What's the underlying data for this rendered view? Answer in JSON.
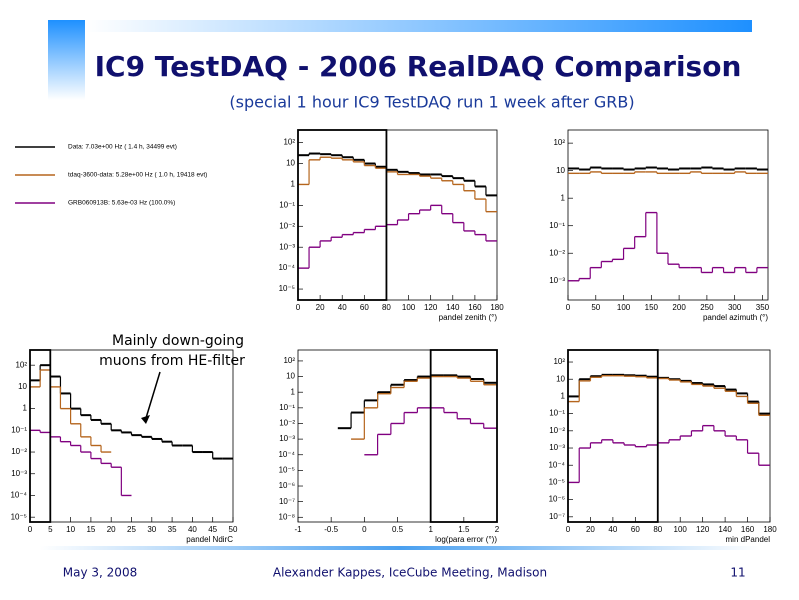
{
  "header": {
    "title": "IC9 TestDAQ - 2006 RealDAQ Comparison",
    "subtitle": "(special 1 hour IC9 TestDAQ run 1 week after GRB)"
  },
  "legend": [
    {
      "text": "Data: 7.03e+00 Hz ( 1.4 h, 34499 evt)",
      "color": "#000000"
    },
    {
      "text": "tdaq-3600-data: 5.28e+00 Hz ( 1.0 h, 19418 evt)",
      "color": "#b5651d"
    },
    {
      "text": "GRB060913B: 5.63e-03 Hz (100.0%)",
      "color": "#800080"
    }
  ],
  "annotation": [
    "Mainly down-going",
    "muons from HE-filter"
  ],
  "footer": {
    "date": "May 3, 2008",
    "author": "Alexander Kappes, IceCube Meeting, Madison",
    "page": "11"
  },
  "chart_data": [
    {
      "type": "histogram",
      "xlabel": "pandel zenith (°)",
      "log_y": true,
      "cut": [
        0,
        80
      ],
      "bins": [
        0,
        10,
        20,
        30,
        40,
        50,
        60,
        70,
        80,
        90,
        100,
        110,
        120,
        130,
        140,
        150,
        160,
        170,
        180
      ],
      "xlim": [
        0,
        180
      ],
      "xticks": [
        0,
        20,
        40,
        60,
        80,
        100,
        120,
        140,
        160,
        180
      ],
      "ylim": [
        3e-06,
        400
      ],
      "yticks": [
        {
          "value": 1e-05,
          "label": "10⁻⁵"
        },
        {
          "value": 0.0001,
          "label": "10⁻⁴"
        },
        {
          "value": 0.001,
          "label": "10⁻³"
        },
        {
          "value": 0.01,
          "label": "10⁻²"
        },
        {
          "value": 0.1,
          "label": "10⁻¹"
        },
        1,
        10,
        {
          "value": 100,
          "label": "10²"
        }
      ],
      "series": [
        {
          "color": "#000000",
          "values": [
            25,
            30,
            28,
            25,
            20,
            15,
            10,
            7,
            5,
            4,
            3.5,
            3,
            3,
            2.5,
            2,
            1.5,
            0.8,
            0.3
          ]
        },
        {
          "color": "#b5651d",
          "values": [
            1,
            15,
            20,
            18,
            15,
            12,
            8,
            6,
            4,
            3,
            3,
            2.5,
            2,
            1.5,
            1,
            0.5,
            0.2,
            0.05
          ]
        },
        {
          "color": "#800080",
          "values": [
            0.0001,
            0.001,
            0.002,
            0.003,
            0.004,
            0.005,
            0.007,
            0.01,
            0.012,
            0.02,
            0.04,
            0.06,
            0.1,
            0.04,
            0.015,
            0.006,
            0.004,
            0.002
          ]
        }
      ]
    },
    {
      "type": "histogram",
      "xlabel": "pandel azimuth (°)",
      "log_y": true,
      "bins": [
        0,
        20,
        40,
        60,
        80,
        100,
        120,
        140,
        160,
        180,
        200,
        220,
        240,
        260,
        280,
        300,
        320,
        340,
        360
      ],
      "xlim": [
        0,
        360
      ],
      "xticks": [
        0,
        50,
        100,
        150,
        200,
        250,
        300,
        350
      ],
      "ylim": [
        0.0002,
        300
      ],
      "yticks": [
        {
          "value": 0.001,
          "label": "10⁻³"
        },
        {
          "value": 0.01,
          "label": "10⁻²"
        },
        {
          "value": 0.1,
          "label": "10⁻¹"
        },
        1,
        10,
        {
          "value": 100,
          "label": "10²"
        }
      ],
      "series": [
        {
          "color": "#000000",
          "values": [
            12,
            11,
            13,
            12,
            12,
            11,
            12,
            13,
            12,
            11,
            12,
            12,
            13,
            12,
            11,
            12,
            12,
            11
          ]
        },
        {
          "color": "#b5651d",
          "values": [
            8,
            8,
            9,
            8,
            8,
            8,
            9,
            9,
            8,
            8,
            8,
            9,
            8,
            8,
            8,
            9,
            8,
            8
          ]
        },
        {
          "color": "#800080",
          "values": [
            0.001,
            0.0012,
            0.003,
            0.005,
            0.006,
            0.015,
            0.04,
            0.3,
            0.01,
            0.004,
            0.003,
            0.003,
            0.002,
            0.003,
            0.002,
            0.003,
            0.002,
            0.003
          ]
        }
      ]
    },
    {
      "type": "histogram",
      "xlabel": "pandel NdirC",
      "log_y": true,
      "cut": [
        0,
        5
      ],
      "bins": [
        0,
        2.5,
        5,
        7.5,
        10,
        12.5,
        15,
        17.5,
        20,
        22.5,
        25,
        27.5,
        30,
        32.5,
        35,
        37.5,
        40,
        42.5,
        45,
        47.5,
        50
      ],
      "xlim": [
        0,
        50
      ],
      "xticks": [
        0,
        5,
        10,
        15,
        20,
        25,
        30,
        35,
        40,
        45,
        50
      ],
      "ylim": [
        6e-06,
        500
      ],
      "yticks": [
        {
          "value": 1e-05,
          "label": "10⁻⁵"
        },
        {
          "value": 0.0001,
          "label": "10⁻⁴"
        },
        {
          "value": 0.001,
          "label": "10⁻³"
        },
        {
          "value": 0.01,
          "label": "10⁻²"
        },
        {
          "value": 0.1,
          "label": "10⁻¹"
        },
        1,
        10,
        {
          "value": 100,
          "label": "10²"
        }
      ],
      "series": [
        {
          "color": "#000000",
          "values": [
            20,
            100,
            30,
            5,
            1,
            0.5,
            0.3,
            0.2,
            0.1,
            0.08,
            0.06,
            0.05,
            0.04,
            0.03,
            0.02,
            0.02,
            0.01,
            0.01,
            0.005,
            0.005
          ]
        },
        {
          "color": "#b5651d",
          "values": [
            10,
            60,
            10,
            1,
            0.2,
            0.05,
            0.02,
            0.01,
            null,
            null,
            null,
            null,
            null,
            null,
            null,
            null,
            null,
            null,
            null,
            null
          ]
        },
        {
          "color": "#800080",
          "values": [
            0.1,
            0.08,
            0.05,
            0.03,
            0.02,
            0.01,
            0.005,
            0.003,
            0.002,
            0.0001,
            null,
            null,
            null,
            null,
            null,
            null,
            null,
            null,
            null,
            null
          ]
        }
      ]
    },
    {
      "type": "histogram",
      "xlabel": "log(para error (°))",
      "log_y": true,
      "cut": [
        1,
        2
      ],
      "bins": [
        -1,
        -0.8,
        -0.6,
        -0.4,
        -0.2,
        0,
        0.2,
        0.4,
        0.6,
        0.8,
        1,
        1.2,
        1.4,
        1.6,
        1.8,
        2
      ],
      "xlim": [
        -1,
        2
      ],
      "xticks": [
        -1,
        -0.5,
        0,
        0.5,
        1,
        1.5,
        2
      ],
      "ylim": [
        5e-09,
        500
      ],
      "yticks": [
        {
          "value": 1e-08,
          "label": "10⁻⁸"
        },
        {
          "value": 1e-07,
          "label": "10⁻⁷"
        },
        {
          "value": 1e-06,
          "label": "10⁻⁶"
        },
        {
          "value": 1e-05,
          "label": "10⁻⁵"
        },
        {
          "value": 0.0001,
          "label": "10⁻⁴"
        },
        {
          "value": 0.001,
          "label": "10⁻³"
        },
        {
          "value": 0.01,
          "label": "10⁻²"
        },
        {
          "value": 0.1,
          "label": "10⁻¹"
        },
        1,
        10,
        {
          "value": 100,
          "label": "10²"
        }
      ],
      "series": [
        {
          "color": "#000000",
          "values": [
            null,
            null,
            null,
            0.005,
            0.05,
            0.3,
            1,
            3,
            6,
            10,
            12,
            12,
            10,
            7,
            4
          ]
        },
        {
          "color": "#b5651d",
          "values": [
            null,
            null,
            null,
            null,
            0.001,
            0.1,
            0.8,
            2,
            5,
            8,
            10,
            10,
            8,
            5,
            3
          ]
        },
        {
          "color": "#800080",
          "values": [
            null,
            null,
            null,
            null,
            null,
            0.0001,
            0.002,
            0.01,
            0.05,
            0.1,
            0.1,
            0.05,
            0.02,
            0.01,
            0.005
          ]
        }
      ]
    },
    {
      "type": "histogram",
      "xlabel": "min dPandel",
      "log_y": true,
      "cut": [
        0,
        80
      ],
      "bins": [
        0,
        10,
        20,
        30,
        40,
        50,
        60,
        70,
        80,
        90,
        100,
        110,
        120,
        130,
        140,
        150,
        160,
        170,
        180
      ],
      "xlim": [
        0,
        180
      ],
      "xticks": [
        0,
        20,
        40,
        60,
        80,
        100,
        120,
        140,
        160,
        180
      ],
      "ylim": [
        5e-08,
        500
      ],
      "yticks": [
        {
          "value": 1e-07,
          "label": "10⁻⁷"
        },
        {
          "value": 1e-06,
          "label": "10⁻⁶"
        },
        {
          "value": 1e-05,
          "label": "10⁻⁵"
        },
        {
          "value": 0.0001,
          "label": "10⁻⁴"
        },
        {
          "value": 0.001,
          "label": "10⁻³"
        },
        {
          "value": 0.01,
          "label": "10⁻²"
        },
        {
          "value": 0.1,
          "label": "10⁻¹"
        },
        1,
        10,
        {
          "value": 100,
          "label": "10²"
        }
      ],
      "series": [
        {
          "color": "#000000",
          "values": [
            1,
            10,
            15,
            18,
            18,
            17,
            16,
            14,
            12,
            10,
            8,
            6,
            5,
            4,
            2.5,
            1.5,
            0.5,
            0.1
          ]
        },
        {
          "color": "#b5651d",
          "values": [
            0.5,
            8,
            13,
            16,
            16,
            15,
            14,
            12,
            11,
            9,
            7,
            5,
            4,
            3,
            2,
            1,
            0.4,
            0.08
          ]
        },
        {
          "color": "#800080",
          "values": [
            1e-05,
            0.001,
            0.002,
            0.003,
            0.002,
            0.0015,
            0.0012,
            0.0015,
            0.002,
            0.003,
            0.005,
            0.01,
            0.02,
            0.01,
            0.005,
            0.003,
            0.0005,
            0.0001
          ]
        }
      ]
    }
  ]
}
